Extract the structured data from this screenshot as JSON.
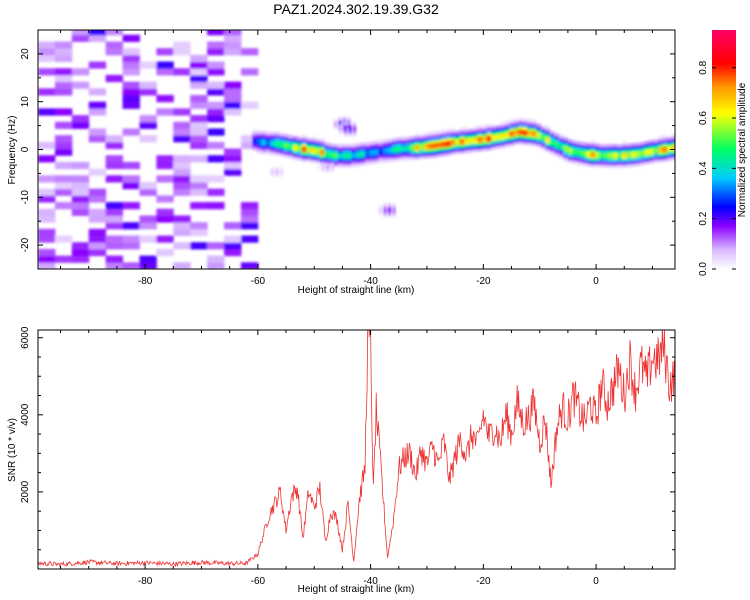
{
  "figure_title": "PAZ1.2024.302.19.39.G32",
  "chart_data": [
    {
      "type": "heatmap",
      "xlabel": "Height of straight line (km)",
      "ylabel": "Frequency (Hz)",
      "xlim": [
        -99,
        14
      ],
      "ylim": [
        -25,
        25
      ],
      "xticks": [
        -80,
        -60,
        -40,
        -20,
        0
      ],
      "yticks": [
        -20,
        -10,
        0,
        10,
        20
      ],
      "colorbar": {
        "label": "Normalized spectral amplitude",
        "range": [
          0,
          0.95
        ],
        "ticks": [
          0.0,
          0.2,
          0.4,
          0.6,
          0.8
        ],
        "colors": [
          "#ffffff",
          "#d9b8ff",
          "#8a00ff",
          "#0000ff",
          "#00ccff",
          "#00ff66",
          "#ffff00",
          "#ff9900",
          "#ff0000",
          "#ff0066"
        ]
      },
      "noise_region_km": [
        -99,
        -61
      ],
      "signal_ridge": {
        "x": [
          -61,
          -57,
          -53,
          -50,
          -47,
          -44,
          -41,
          -38,
          -35,
          -32,
          -29,
          -26,
          -23,
          -20,
          -17,
          -14,
          -11,
          -8,
          -5,
          -2,
          1,
          4,
          7,
          10,
          13,
          14
        ],
        "freq": [
          1.5,
          1.0,
          0.0,
          -0.5,
          -1.5,
          -1.5,
          -1.0,
          -0.5,
          0.0,
          0.2,
          0.6,
          1.2,
          1.6,
          2.0,
          2.6,
          3.5,
          3.0,
          1.2,
          -0.5,
          -1.2,
          -1.5,
          -1.5,
          -1.2,
          -0.5,
          0.0,
          0.3
        ],
        "amplitude": [
          0.3,
          0.45,
          0.75,
          0.8,
          0.55,
          0.45,
          0.4,
          0.35,
          0.5,
          0.7,
          0.8,
          0.8,
          0.85,
          0.85,
          0.85,
          0.8,
          0.75,
          0.6,
          0.55,
          0.75,
          0.6,
          0.6,
          0.7,
          0.7,
          0.75,
          0.7
        ]
      }
    },
    {
      "type": "line",
      "xlabel": "Height of straight line (km)",
      "ylabel": "SNR (10 * v/v)",
      "xlim": [
        -99,
        14
      ],
      "ylim": [
        0,
        6200
      ],
      "xticks": [
        -80,
        -60,
        -40,
        -20,
        0
      ],
      "yticks": [
        2000,
        4000,
        6000
      ],
      "color": "#ee3333",
      "series": [
        {
          "x": [
            -99,
            -95,
            -90,
            -85,
            -80,
            -75,
            -70,
            -65,
            -62,
            -60,
            -58,
            -56,
            -55,
            -54,
            -53,
            -52,
            -51,
            -50,
            -49,
            -48,
            -47,
            -46,
            -45,
            -44,
            -43,
            -42,
            -41,
            -40.5,
            -40,
            -39.5,
            -39,
            -38,
            -37,
            -36,
            -35,
            -34,
            -33,
            -32,
            -31,
            -30,
            -29,
            -28,
            -27,
            -26,
            -25,
            -24,
            -23,
            -22,
            -21,
            -20,
            -19,
            -18,
            -17,
            -16,
            -15,
            -14,
            -13,
            -12,
            -11,
            -10,
            -9,
            -8,
            -7,
            -6,
            -5,
            -4,
            -3,
            -2,
            -1,
            0,
            1,
            2,
            3,
            4,
            5,
            6,
            7,
            8,
            9,
            10,
            11,
            12,
            13,
            14
          ],
          "y": [
            150,
            120,
            180,
            140,
            160,
            130,
            170,
            140,
            150,
            400,
            1400,
            2000,
            1000,
            1900,
            2100,
            800,
            2000,
            1600,
            2100,
            700,
            1500,
            1300,
            500,
            1700,
            200,
            1800,
            2600,
            6200,
            5700,
            2000,
            4100,
            2300,
            300,
            1200,
            2600,
            2900,
            3000,
            2400,
            3100,
            2700,
            3200,
            2700,
            3300,
            2300,
            2900,
            3400,
            2900,
            3500,
            3200,
            4000,
            3400,
            3700,
            3300,
            4000,
            3500,
            4300,
            3800,
            3900,
            4300,
            3300,
            3900,
            2200,
            3600,
            4200,
            3900,
            4500,
            4100,
            3800,
            4300,
            3900,
            4800,
            4300,
            4700,
            5200,
            4500,
            5400,
            4600,
            5300,
            4900,
            5500,
            5400,
            5800,
            4800,
            5000
          ]
        }
      ]
    }
  ]
}
